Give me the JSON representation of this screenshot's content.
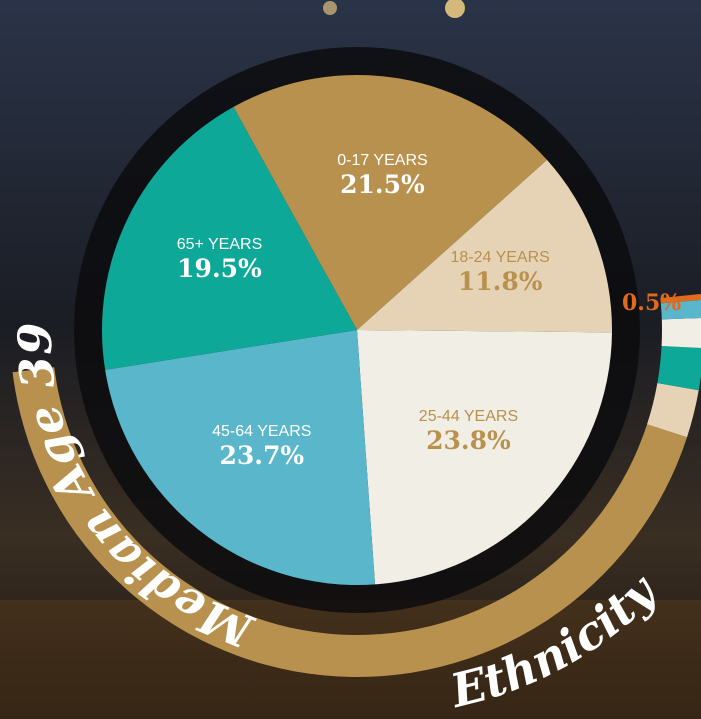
{
  "chart_data": {
    "type": "pie",
    "title": "Median Age 39",
    "categories": [
      "0-17 YEARS",
      "18-24 YEARS",
      "25-44 YEARS",
      "45-64 YEARS",
      "65+ YEARS"
    ],
    "values": [
      21.5,
      11.8,
      23.8,
      23.7,
      19.5
    ],
    "value_labels": [
      "21.5%",
      "11.8%",
      "23.8%",
      "23.7%",
      "19.5%"
    ],
    "colors": [
      "#b8914e",
      "#e6d3b5",
      "#f1eee5",
      "#5ab6cb",
      "#0ea898"
    ],
    "label_colors": [
      "#ffffff",
      "#b8914e",
      "#b8914e",
      "#ffffff",
      "#ffffff"
    ]
  },
  "ethnicity": {
    "title": "Ethnicity",
    "visible_label": "0.5%"
  }
}
